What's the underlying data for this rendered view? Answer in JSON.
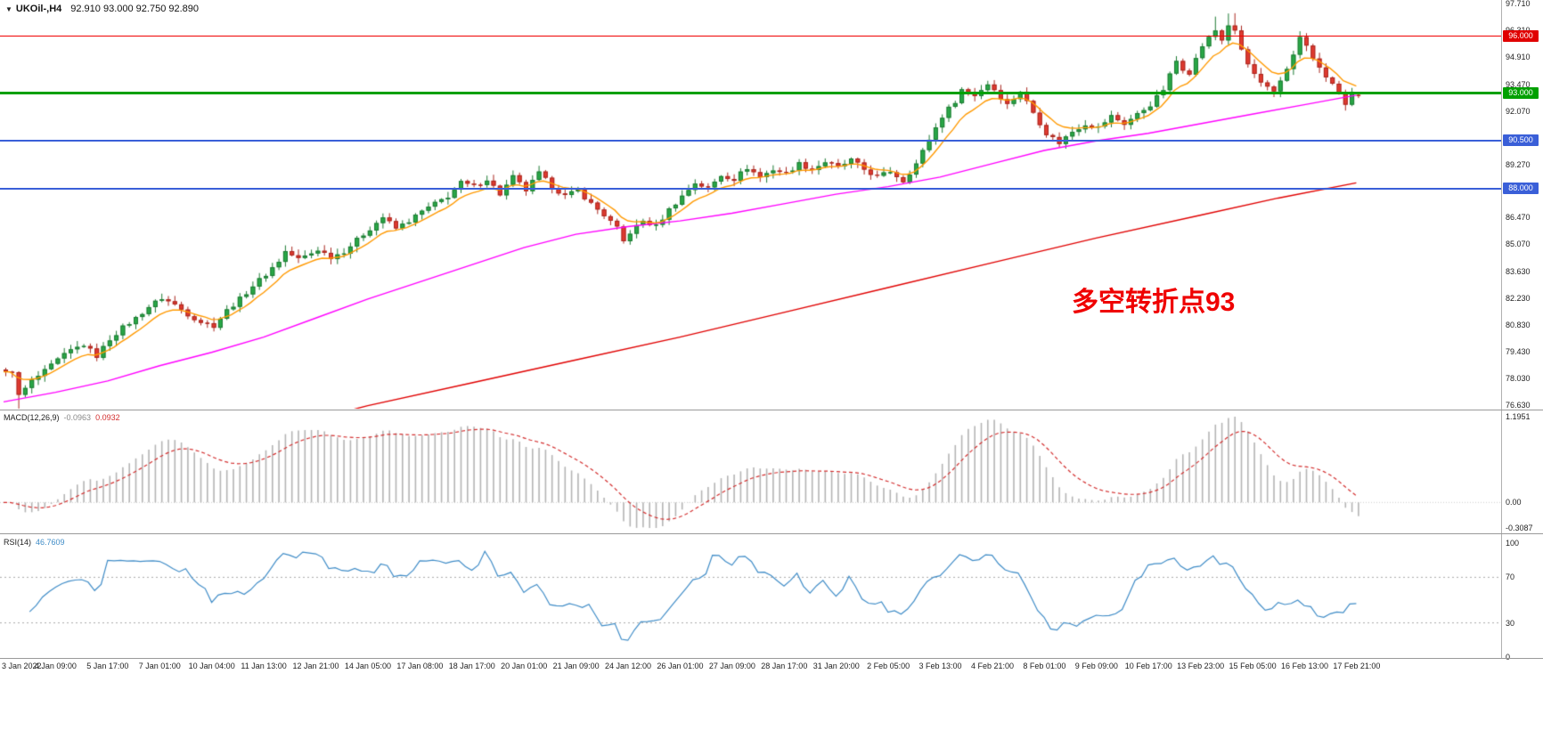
{
  "window": {
    "bg": "#ffffff",
    "divider_color": "#9a9a9a"
  },
  "header": {
    "collapse_icon": "▼",
    "title": "UKOil-,H4",
    "ohlc": "92.910 93.000 92.750 92.890"
  },
  "annotation": {
    "text": "多空转折点93",
    "color": "#ef0000"
  },
  "price_axis": {
    "ticks": [
      "97.710",
      "96.310",
      "94.910",
      "93.470",
      "92.070",
      "89.270",
      "86.470",
      "85.070",
      "83.630",
      "82.230",
      "80.830",
      "79.430",
      "78.030",
      "76.630"
    ],
    "badges": [
      {
        "label": "96.000",
        "value": 96.0,
        "color": "#e00000"
      },
      {
        "label": "93.000",
        "value": 93.0,
        "color": "#00a000"
      },
      {
        "label": "90.500",
        "value": 90.5,
        "color": "#3a5fd8"
      },
      {
        "label": "88.000",
        "value": 88.0,
        "color": "#3a5fd8"
      }
    ]
  },
  "indicators": {
    "macd": {
      "name": "MACD(12,26,9)",
      "main_value": "-0.0963",
      "signal_value": "0.0932",
      "axis_top": "1.1951",
      "axis_zero": "0.00",
      "axis_bottom": "-0.3087",
      "hist_color": "#b4b4b4",
      "signal_color": "#d32f2f"
    },
    "rsi": {
      "name": "RSI(14)",
      "value": "46.7609",
      "axis": [
        "100",
        "70",
        "30",
        "0"
      ],
      "levels": [
        70,
        30
      ],
      "line_color": "#3f8cc7"
    }
  },
  "time_axis": {
    "labels": [
      "3 Jan 2022",
      "4 Jan 09:00",
      "5 Jan 17:00",
      "7 Jan 01:00",
      "10 Jan 04:00",
      "11 Jan 13:00",
      "12 Jan 21:00",
      "14 Jan 05:00",
      "17 Jan 08:00",
      "18 Jan 17:00",
      "20 Jan 01:00",
      "21 Jan 09:00",
      "24 Jan 12:00",
      "26 Jan 01:00",
      "27 Jan 09:00",
      "28 Jan 17:00",
      "31 Jan 20:00",
      "2 Feb 05:00",
      "3 Feb 13:00",
      "4 Feb 21:00",
      "8 Feb 01:00",
      "9 Feb 09:00",
      "10 Feb 17:00",
      "13 Feb 23:00",
      "15 Feb 05:00",
      "16 Feb 13:00",
      "17 Feb 21:00"
    ]
  },
  "chart_data": {
    "type": "candlestick",
    "symbol": "UKOil-",
    "timeframe": "H4",
    "price_min": 76.63,
    "price_max": 97.71,
    "candle_count": 209,
    "last_candle": {
      "open": 92.91,
      "high": 93.0,
      "low": 92.75,
      "close": 92.89
    },
    "up_color": "#29a847",
    "down_color": "#e03a30",
    "horizontal_lines": [
      {
        "price": 96.0,
        "color": "#f00000",
        "width": 1
      },
      {
        "price": 93.0,
        "color": "#00a000",
        "width": 3
      },
      {
        "price": 90.5,
        "color": "#3a5fd8",
        "width": 2
      },
      {
        "price": 88.0,
        "color": "#3a5fd8",
        "width": 2
      }
    ],
    "close_waypoints": [
      [
        0,
        78.3
      ],
      [
        1,
        78.45
      ],
      [
        2,
        77.1
      ],
      [
        4,
        77.9
      ],
      [
        6,
        78.4
      ],
      [
        8,
        79.0
      ],
      [
        10,
        79.5
      ],
      [
        12,
        79.8
      ],
      [
        14,
        79.2
      ],
      [
        16,
        80.1
      ],
      [
        18,
        80.7
      ],
      [
        20,
        81.2
      ],
      [
        22,
        81.8
      ],
      [
        24,
        82.25
      ],
      [
        26,
        81.9
      ],
      [
        28,
        81.4
      ],
      [
        30,
        81.0
      ],
      [
        32,
        80.8
      ],
      [
        34,
        81.6
      ],
      [
        36,
        82.2
      ],
      [
        38,
        82.9
      ],
      [
        40,
        83.5
      ],
      [
        42,
        84.2
      ],
      [
        43,
        84.7
      ],
      [
        45,
        84.3
      ],
      [
        47,
        84.6
      ],
      [
        48,
        84.8
      ],
      [
        50,
        84.4
      ],
      [
        52,
        84.7
      ],
      [
        54,
        85.3
      ],
      [
        56,
        85.9
      ],
      [
        58,
        86.5
      ],
      [
        60,
        85.9
      ],
      [
        62,
        86.3
      ],
      [
        64,
        86.8
      ],
      [
        66,
        87.2
      ],
      [
        68,
        87.6
      ],
      [
        70,
        88.3
      ],
      [
        72,
        88.1
      ],
      [
        74,
        88.5
      ],
      [
        76,
        87.7
      ],
      [
        78,
        88.6
      ],
      [
        80,
        87.9
      ],
      [
        82,
        88.8
      ],
      [
        84,
        88.1
      ],
      [
        86,
        87.6
      ],
      [
        88,
        87.9
      ],
      [
        90,
        87.2
      ],
      [
        92,
        86.6
      ],
      [
        94,
        85.9
      ],
      [
        95,
        85.2
      ],
      [
        96,
        85.7
      ],
      [
        98,
        86.3
      ],
      [
        100,
        86.0
      ],
      [
        102,
        86.9
      ],
      [
        104,
        87.6
      ],
      [
        106,
        88.3
      ],
      [
        108,
        88.0
      ],
      [
        110,
        88.7
      ],
      [
        112,
        88.5
      ],
      [
        114,
        89.1
      ],
      [
        116,
        88.6
      ],
      [
        118,
        89.0
      ],
      [
        120,
        88.8
      ],
      [
        122,
        89.3
      ],
      [
        124,
        89.0
      ],
      [
        126,
        89.4
      ],
      [
        128,
        89.1
      ],
      [
        130,
        89.5
      ],
      [
        132,
        89.0
      ],
      [
        134,
        88.6
      ],
      [
        136,
        88.9
      ],
      [
        138,
        88.4
      ],
      [
        140,
        89.3
      ],
      [
        142,
        90.6
      ],
      [
        144,
        91.8
      ],
      [
        146,
        92.6
      ],
      [
        147,
        93.2
      ],
      [
        149,
        92.9
      ],
      [
        151,
        93.5
      ],
      [
        152,
        93.2
      ],
      [
        154,
        92.4
      ],
      [
        156,
        93.1
      ],
      [
        158,
        92.0
      ],
      [
        160,
        90.9
      ],
      [
        162,
        90.4
      ],
      [
        164,
        91.0
      ],
      [
        166,
        91.4
      ],
      [
        168,
        91.2
      ],
      [
        170,
        91.8
      ],
      [
        172,
        91.4
      ],
      [
        174,
        91.9
      ],
      [
        176,
        92.4
      ],
      [
        178,
        93.2
      ],
      [
        180,
        94.7
      ],
      [
        181,
        94.3
      ],
      [
        182,
        94.1
      ],
      [
        184,
        95.5
      ],
      [
        185,
        95.9
      ],
      [
        186,
        96.3
      ],
      [
        187,
        95.8
      ],
      [
        188,
        96.6
      ],
      [
        189,
        96.2
      ],
      [
        190,
        95.3
      ],
      [
        191,
        94.5
      ],
      [
        193,
        93.5
      ],
      [
        195,
        93.0
      ],
      [
        197,
        94.3
      ],
      [
        199,
        95.9
      ],
      [
        200,
        95.5
      ],
      [
        201,
        94.8
      ],
      [
        202,
        94.3
      ],
      [
        203,
        93.9
      ],
      [
        204,
        93.4
      ],
      [
        205,
        93.0
      ],
      [
        206,
        92.4
      ],
      [
        207,
        93.05
      ],
      [
        208,
        92.89
      ]
    ],
    "moving_averages": {
      "fast": {
        "color": "#ff9900",
        "type": "ema",
        "period": 8
      },
      "mid": {
        "color": "#ff00ff",
        "waypoints": [
          [
            0,
            76.8
          ],
          [
            8,
            77.3
          ],
          [
            16,
            77.9
          ],
          [
            24,
            78.7
          ],
          [
            32,
            79.4
          ],
          [
            40,
            80.2
          ],
          [
            48,
            81.2
          ],
          [
            56,
            82.2
          ],
          [
            64,
            83.1
          ],
          [
            72,
            84.0
          ],
          [
            80,
            84.9
          ],
          [
            88,
            85.6
          ],
          [
            96,
            86.0
          ],
          [
            104,
            86.3
          ],
          [
            112,
            86.7
          ],
          [
            120,
            87.2
          ],
          [
            128,
            87.7
          ],
          [
            136,
            88.1
          ],
          [
            144,
            88.6
          ],
          [
            152,
            89.3
          ],
          [
            160,
            90.0
          ],
          [
            168,
            90.5
          ],
          [
            176,
            90.9
          ],
          [
            184,
            91.4
          ],
          [
            192,
            91.9
          ],
          [
            200,
            92.4
          ],
          [
            208,
            92.9
          ]
        ]
      },
      "slow": {
        "color": "#e00000",
        "waypoints": [
          [
            40,
            75.2
          ],
          [
            56,
            76.6
          ],
          [
            72,
            77.8
          ],
          [
            88,
            79.0
          ],
          [
            104,
            80.2
          ],
          [
            120,
            81.5
          ],
          [
            136,
            82.8
          ],
          [
            152,
            84.1
          ],
          [
            168,
            85.4
          ],
          [
            184,
            86.6
          ],
          [
            196,
            87.5
          ],
          [
            208,
            88.3
          ]
        ]
      }
    }
  }
}
